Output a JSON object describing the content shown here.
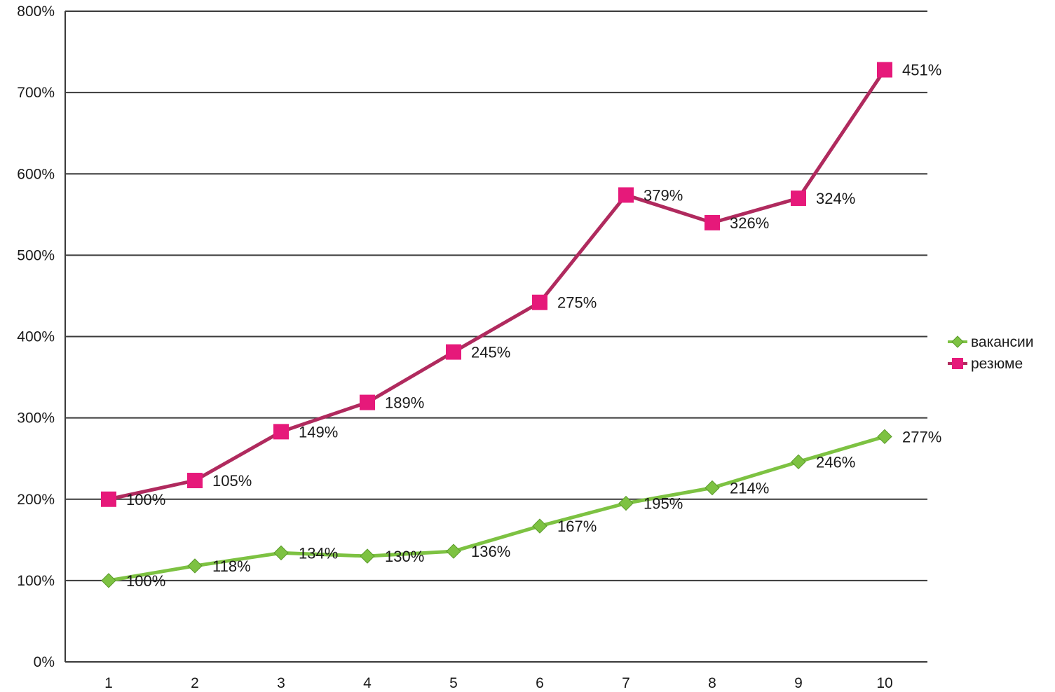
{
  "chart_data": {
    "type": "line",
    "title": "",
    "xlabel": "",
    "ylabel": "",
    "x": [
      1,
      2,
      3,
      4,
      5,
      6,
      7,
      8,
      9,
      10
    ],
    "x_tick_labels": [
      "1",
      "2",
      "3",
      "4",
      "5",
      "6",
      "7",
      "8",
      "9",
      "10"
    ],
    "y_tick_labels": [
      "0%",
      "100%",
      "200%",
      "300%",
      "400%",
      "500%",
      "600%",
      "700%",
      "800%"
    ],
    "ylim": [
      0,
      800
    ],
    "y_unit": "%",
    "grid": "horizontal",
    "legend_position": "right",
    "series": [
      {
        "name": "вакансии",
        "color": "#7dc242",
        "marker": "diamond",
        "values": [
          100,
          118,
          134,
          130,
          136,
          167,
          195,
          214,
          246,
          277
        ],
        "labels": [
          "100%",
          "118%",
          "134%",
          "130%",
          "136%",
          "167%",
          "195%",
          "214%",
          "246%",
          "277%"
        ]
      },
      {
        "name": "резюме",
        "color": "#b02a5e",
        "marker_color": "#e6197a",
        "marker": "square",
        "values": [
          200,
          223,
          283,
          319,
          381,
          442,
          574,
          540,
          570,
          728
        ],
        "labels": [
          "100%",
          "105%",
          "149%",
          "189%",
          "245%",
          "275%",
          "379%",
          "326%",
          "324%",
          "451%"
        ]
      }
    ]
  }
}
